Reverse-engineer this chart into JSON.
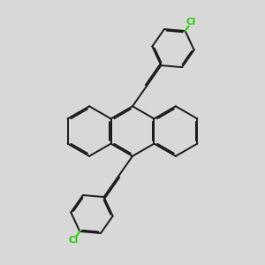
{
  "background_color": "#d8d8d8",
  "bond_color": "#1a1a1a",
  "cl_color": "#22cc00",
  "lw": 1.4,
  "dbo": 0.055,
  "figsize": [
    3.0,
    3.0
  ],
  "dpi": 100,
  "xlim": [
    0,
    10
  ],
  "ylim": [
    0,
    10
  ],
  "ring_r": 0.95,
  "ph_r": 0.8
}
